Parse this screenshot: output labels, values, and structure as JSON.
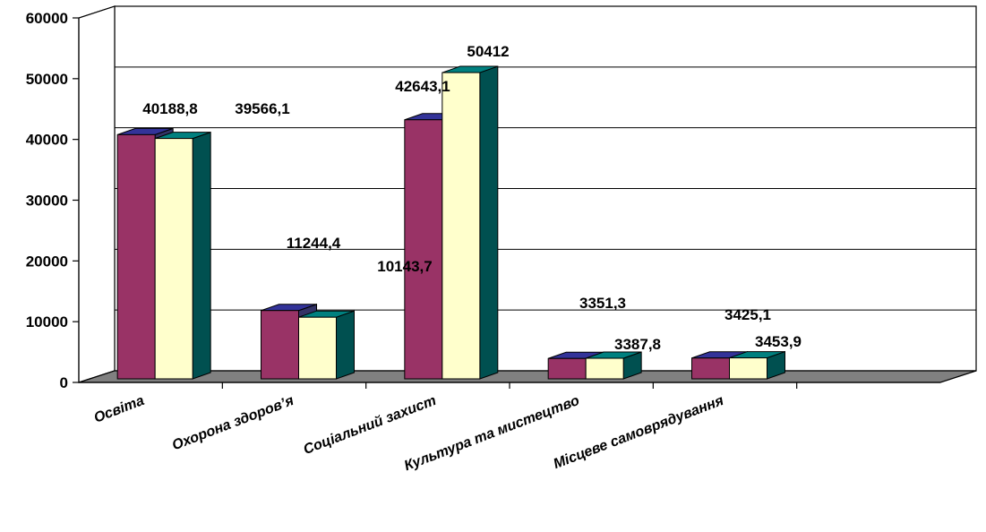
{
  "chart_data": {
    "type": "bar",
    "categories": [
      "Освіта",
      "Охорона здоров’я",
      "Соціальний захист",
      "Культура та мистецтво",
      "Місцеве самоврядування"
    ],
    "series": [
      {
        "color": "#993366",
        "values": [
          40188.8,
          11244.4,
          42643.1,
          3351.3,
          3425.1
        ],
        "labels": [
          "40188,8",
          "11244,4",
          "42643,1",
          "3351,3",
          "3425,1"
        ]
      },
      {
        "color": "#FFFFCC",
        "values": [
          39566.1,
          10143.7,
          50412,
          3387.8,
          3453.9
        ],
        "labels": [
          "39566,1",
          "10143,7",
          "50412",
          "3387,8",
          "3453,9"
        ]
      }
    ],
    "y_ticks": [
      "0",
      "10000",
      "20000",
      "30000",
      "40000",
      "50000",
      "60000"
    ],
    "ylim": [
      0,
      60000
    ],
    "grid": true,
    "legend": "none",
    "floor_color": "#808080"
  }
}
